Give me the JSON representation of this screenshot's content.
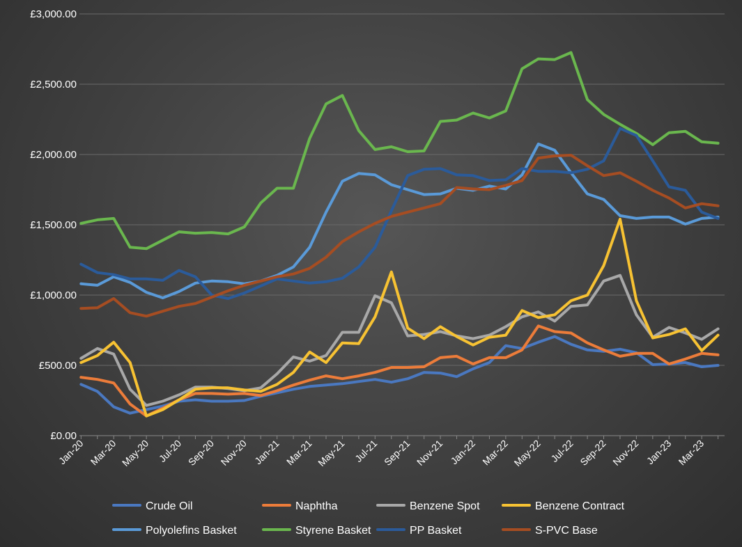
{
  "chart_data": {
    "type": "line",
    "title": "",
    "xlabel": "",
    "ylabel": "",
    "ylim": [
      0,
      3000
    ],
    "yticks": [
      0,
      500,
      1000,
      1500,
      2000,
      2500,
      3000
    ],
    "ytick_labels": [
      "£0.00",
      "£500.00",
      "£1,000.00",
      "£1,500.00",
      "£2,000.00",
      "£2,500.00",
      "£3,000.00"
    ],
    "grid": true,
    "legend_position": "bottom",
    "categories": [
      "Jan-20",
      "Feb-20",
      "Mar-20",
      "Apr-20",
      "May-20",
      "Jun-20",
      "Jul-20",
      "Aug-20",
      "Sep-20",
      "Oct-20",
      "Nov-20",
      "Dec-20",
      "Jan-21",
      "Feb-21",
      "Mar-21",
      "Apr-21",
      "May-21",
      "Jun-21",
      "Jul-21",
      "Aug-21",
      "Sep-21",
      "Oct-21",
      "Nov-21",
      "Dec-21",
      "Jan-22",
      "Feb-22",
      "Mar-22",
      "Apr-22",
      "May-22",
      "Jun-22",
      "Jul-22",
      "Aug-22",
      "Sep-22",
      "Oct-22",
      "Nov-22",
      "Dec-22",
      "Jan-23",
      "Feb-23",
      "Mar-23",
      "Apr-23"
    ],
    "x_tick_labels": [
      "Jan-20",
      "Mar-20",
      "May-20",
      "Jul-20",
      "Sep-20",
      "Nov-20",
      "Jan-21",
      "Mar-21",
      "May-21",
      "Jul-21",
      "Sep-21",
      "Nov-21",
      "Jan-22",
      "Mar-22",
      "May-22",
      "Jul-22",
      "Sep-22",
      "Nov-22",
      "Jan-23",
      "Mar-23"
    ],
    "series": [
      {
        "name": "Crude Oil",
        "color": "#4a78c0",
        "values": [
          365,
          315,
          205,
          160,
          185,
          210,
          245,
          255,
          245,
          245,
          250,
          280,
          305,
          330,
          350,
          360,
          370,
          385,
          400,
          380,
          405,
          450,
          445,
          420,
          475,
          520,
          640,
          620,
          665,
          705,
          650,
          610,
          600,
          615,
          590,
          505,
          510,
          520,
          490,
          500
        ]
      },
      {
        "name": "Naphtha",
        "color": "#ec7c3a",
        "values": [
          415,
          400,
          375,
          225,
          140,
          195,
          255,
          300,
          300,
          295,
          300,
          285,
          320,
          360,
          395,
          425,
          405,
          425,
          450,
          485,
          485,
          490,
          555,
          565,
          510,
          555,
          555,
          610,
          780,
          740,
          730,
          660,
          610,
          565,
          585,
          585,
          510,
          545,
          585,
          575
        ]
      },
      {
        "name": "Benzene Spot",
        "color": "#a8a8a8",
        "values": [
          550,
          620,
          580,
          330,
          215,
          245,
          290,
          345,
          345,
          335,
          320,
          340,
          440,
          560,
          530,
          570,
          735,
          735,
          995,
          945,
          710,
          720,
          740,
          710,
          690,
          715,
          775,
          845,
          880,
          815,
          920,
          930,
          1100,
          1140,
          860,
          700,
          770,
          730,
          685,
          760
        ]
      },
      {
        "name": "Benzene Contract",
        "color": "#f7c233",
        "values": [
          520,
          570,
          665,
          520,
          140,
          185,
          255,
          330,
          340,
          340,
          325,
          315,
          365,
          450,
          595,
          520,
          660,
          655,
          845,
          1165,
          765,
          690,
          775,
          705,
          645,
          700,
          715,
          890,
          840,
          860,
          960,
          1000,
          1210,
          1540,
          960,
          695,
          720,
          760,
          605,
          715
        ]
      },
      {
        "name": "Polyolefins Basket",
        "color": "#5a9ad8",
        "values": [
          1080,
          1070,
          1130,
          1090,
          1020,
          980,
          1025,
          1085,
          1100,
          1095,
          1080,
          1100,
          1140,
          1200,
          1340,
          1590,
          1810,
          1865,
          1855,
          1785,
          1750,
          1715,
          1720,
          1760,
          1745,
          1775,
          1755,
          1855,
          2075,
          2030,
          1870,
          1720,
          1680,
          1565,
          1545,
          1555,
          1555,
          1505,
          1545,
          1555
        ]
      },
      {
        "name": "Styrene Basket",
        "color": "#6ab74e",
        "values": [
          1510,
          1535,
          1545,
          1340,
          1330,
          1390,
          1450,
          1440,
          1445,
          1435,
          1485,
          1655,
          1760,
          1760,
          2115,
          2360,
          2420,
          2170,
          2035,
          2055,
          2020,
          2025,
          2235,
          2245,
          2295,
          2260,
          2310,
          2610,
          2680,
          2675,
          2725,
          2390,
          2285,
          2215,
          2150,
          2070,
          2155,
          2165,
          2090,
          2080
        ]
      },
      {
        "name": "PP Basket",
        "color": "#2b5b9a",
        "values": [
          1220,
          1160,
          1145,
          1115,
          1115,
          1105,
          1175,
          1130,
          1000,
          975,
          1015,
          1065,
          1115,
          1100,
          1085,
          1095,
          1120,
          1200,
          1340,
          1600,
          1850,
          1895,
          1900,
          1855,
          1850,
          1815,
          1820,
          1900,
          1880,
          1880,
          1870,
          1895,
          1955,
          2185,
          2135,
          1955,
          1770,
          1745,
          1590,
          1545
        ]
      },
      {
        "name": "S-PVC Base",
        "color": "#a64d22",
        "values": [
          905,
          910,
          975,
          875,
          850,
          885,
          920,
          940,
          985,
          1030,
          1070,
          1100,
          1130,
          1150,
          1190,
          1270,
          1380,
          1450,
          1510,
          1560,
          1590,
          1620,
          1650,
          1765,
          1755,
          1750,
          1780,
          1815,
          1975,
          1990,
          1995,
          1920,
          1850,
          1870,
          1810,
          1745,
          1690,
          1620,
          1650,
          1635
        ]
      }
    ]
  }
}
